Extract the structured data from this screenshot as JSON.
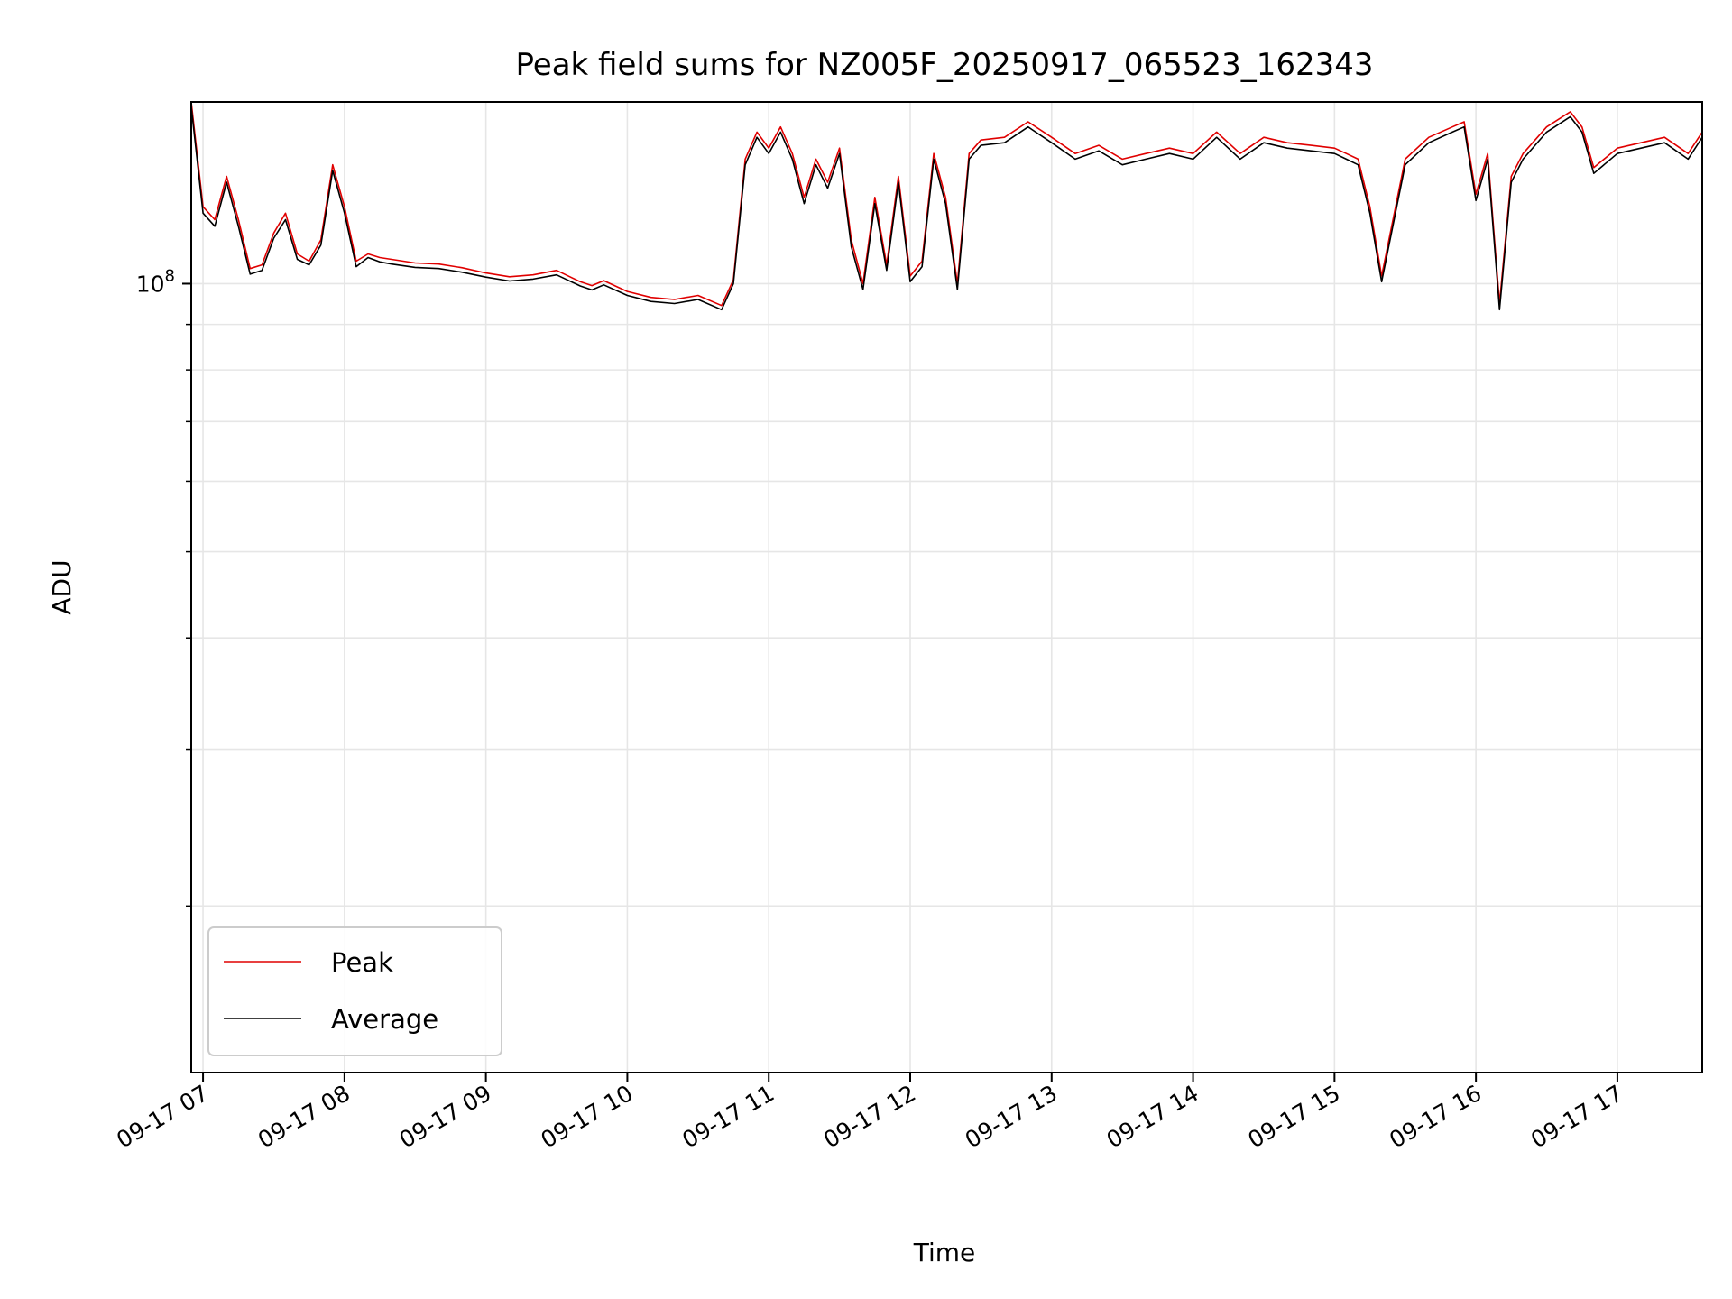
{
  "chart_data": {
    "type": "line",
    "title": "Peak field sums for NZ005F_20250917_065523_162343",
    "xlabel": "Time",
    "ylabel": "ADU",
    "yscale": "log",
    "x_range": [
      "2025-09-17 06:55",
      "2025-09-17 17:36"
    ],
    "ylim": [
      13000000,
      160000000
    ],
    "x_ticks": [
      "09-17 07",
      "09-17 08",
      "09-17 09",
      "09-17 10",
      "09-17 11",
      "09-17 12",
      "09-17 13",
      "09-17 14",
      "09-17 15",
      "09-17 16",
      "09-17 17"
    ],
    "y_tick_label": {
      "base": "10",
      "exp": "8"
    },
    "y_minor_ticks": [
      20000000,
      30000000,
      40000000,
      50000000,
      60000000,
      70000000,
      80000000,
      90000000
    ],
    "grid": true,
    "legend": {
      "position": "bottom-left",
      "entries": [
        "Peak",
        "Average"
      ]
    },
    "x": [
      "06:55",
      "07:00",
      "07:05",
      "07:10",
      "07:15",
      "07:20",
      "07:25",
      "07:30",
      "07:35",
      "07:40",
      "07:45",
      "07:50",
      "07:55",
      "08:00",
      "08:05",
      "08:10",
      "08:15",
      "08:20",
      "08:30",
      "08:40",
      "08:50",
      "09:00",
      "09:10",
      "09:20",
      "09:30",
      "09:40",
      "09:45",
      "09:50",
      "10:00",
      "10:10",
      "10:20",
      "10:30",
      "10:40",
      "10:45",
      "10:50",
      "10:55",
      "11:00",
      "11:05",
      "11:10",
      "11:15",
      "11:20",
      "11:25",
      "11:30",
      "11:35",
      "11:40",
      "11:45",
      "11:50",
      "11:55",
      "12:00",
      "12:05",
      "12:10",
      "12:15",
      "12:20",
      "12:25",
      "12:30",
      "12:40",
      "12:50",
      "13:00",
      "13:10",
      "13:20",
      "13:30",
      "13:40",
      "13:50",
      "14:00",
      "14:10",
      "14:20",
      "14:30",
      "14:40",
      "14:50",
      "15:00",
      "15:05",
      "15:10",
      "15:15",
      "15:20",
      "15:30",
      "15:40",
      "15:50",
      "15:55",
      "16:00",
      "16:05",
      "16:10",
      "16:15",
      "16:20",
      "16:30",
      "16:40",
      "16:45",
      "16:50",
      "17:00",
      "17:10",
      "17:20",
      "17:30",
      "17:36"
    ],
    "series": [
      {
        "name": "Peak",
        "color": "#e00000",
        "values": [
          160000000,
          122000000,
          118000000,
          132000000,
          118000000,
          104000000,
          105000000,
          114000000,
          120000000,
          108000000,
          106000000,
          112000000,
          136000000,
          122000000,
          106000000,
          108000000,
          107000000,
          106500000,
          105500000,
          105200000,
          104200000,
          102800000,
          101800000,
          102300000,
          103500000,
          100500000,
          99500000,
          100800000,
          98000000,
          96500000,
          96000000,
          97000000,
          94500000,
          101000000,
          138000000,
          148000000,
          142000000,
          150000000,
          140000000,
          125000000,
          138000000,
          130000000,
          142000000,
          112000000,
          100000000,
          125000000,
          105000000,
          132000000,
          102000000,
          106000000,
          140000000,
          125000000,
          100000000,
          140000000,
          145000000,
          146000000,
          152000000,
          146000000,
          140000000,
          143000000,
          138000000,
          140000000,
          142000000,
          140000000,
          148000000,
          140000000,
          146000000,
          144000000,
          143000000,
          142000000,
          140000000,
          138000000,
          122000000,
          102000000,
          138000000,
          146000000,
          150000000,
          152000000,
          126000000,
          140000000,
          95000000,
          132000000,
          140000000,
          150000000,
          156000000,
          150000000,
          135000000,
          142000000,
          144000000,
          146000000,
          140000000,
          148000000
        ]
      },
      {
        "name": "Average",
        "color": "#000000",
        "values": [
          158000000,
          120000000,
          116000000,
          130000000,
          116000000,
          102500000,
          103500000,
          112500000,
          118000000,
          106500000,
          105000000,
          110500000,
          134000000,
          120000000,
          104500000,
          107000000,
          105800000,
          105200000,
          104300000,
          104000000,
          103000000,
          101700000,
          100700000,
          101200000,
          102300000,
          99400000,
          98400000,
          99700000,
          97000000,
          95500000,
          95000000,
          96000000,
          93500000,
          100000000,
          136000000,
          146000000,
          140000000,
          148000000,
          138000000,
          123000000,
          136000000,
          128000000,
          140000000,
          110000000,
          98500000,
          123000000,
          103500000,
          130000000,
          100500000,
          104500000,
          138000000,
          123000000,
          98500000,
          138000000,
          143000000,
          144000000,
          150000000,
          144000000,
          138000000,
          141000000,
          136000000,
          138000000,
          140000000,
          138000000,
          146000000,
          138000000,
          144000000,
          142000000,
          141000000,
          140000000,
          138000000,
          136000000,
          120000000,
          100500000,
          136000000,
          144000000,
          148000000,
          150000000,
          124000000,
          138000000,
          93500000,
          130000000,
          138000000,
          148000000,
          154000000,
          148000000,
          133000000,
          140000000,
          142000000,
          144000000,
          138000000,
          146000000
        ]
      }
    ]
  }
}
